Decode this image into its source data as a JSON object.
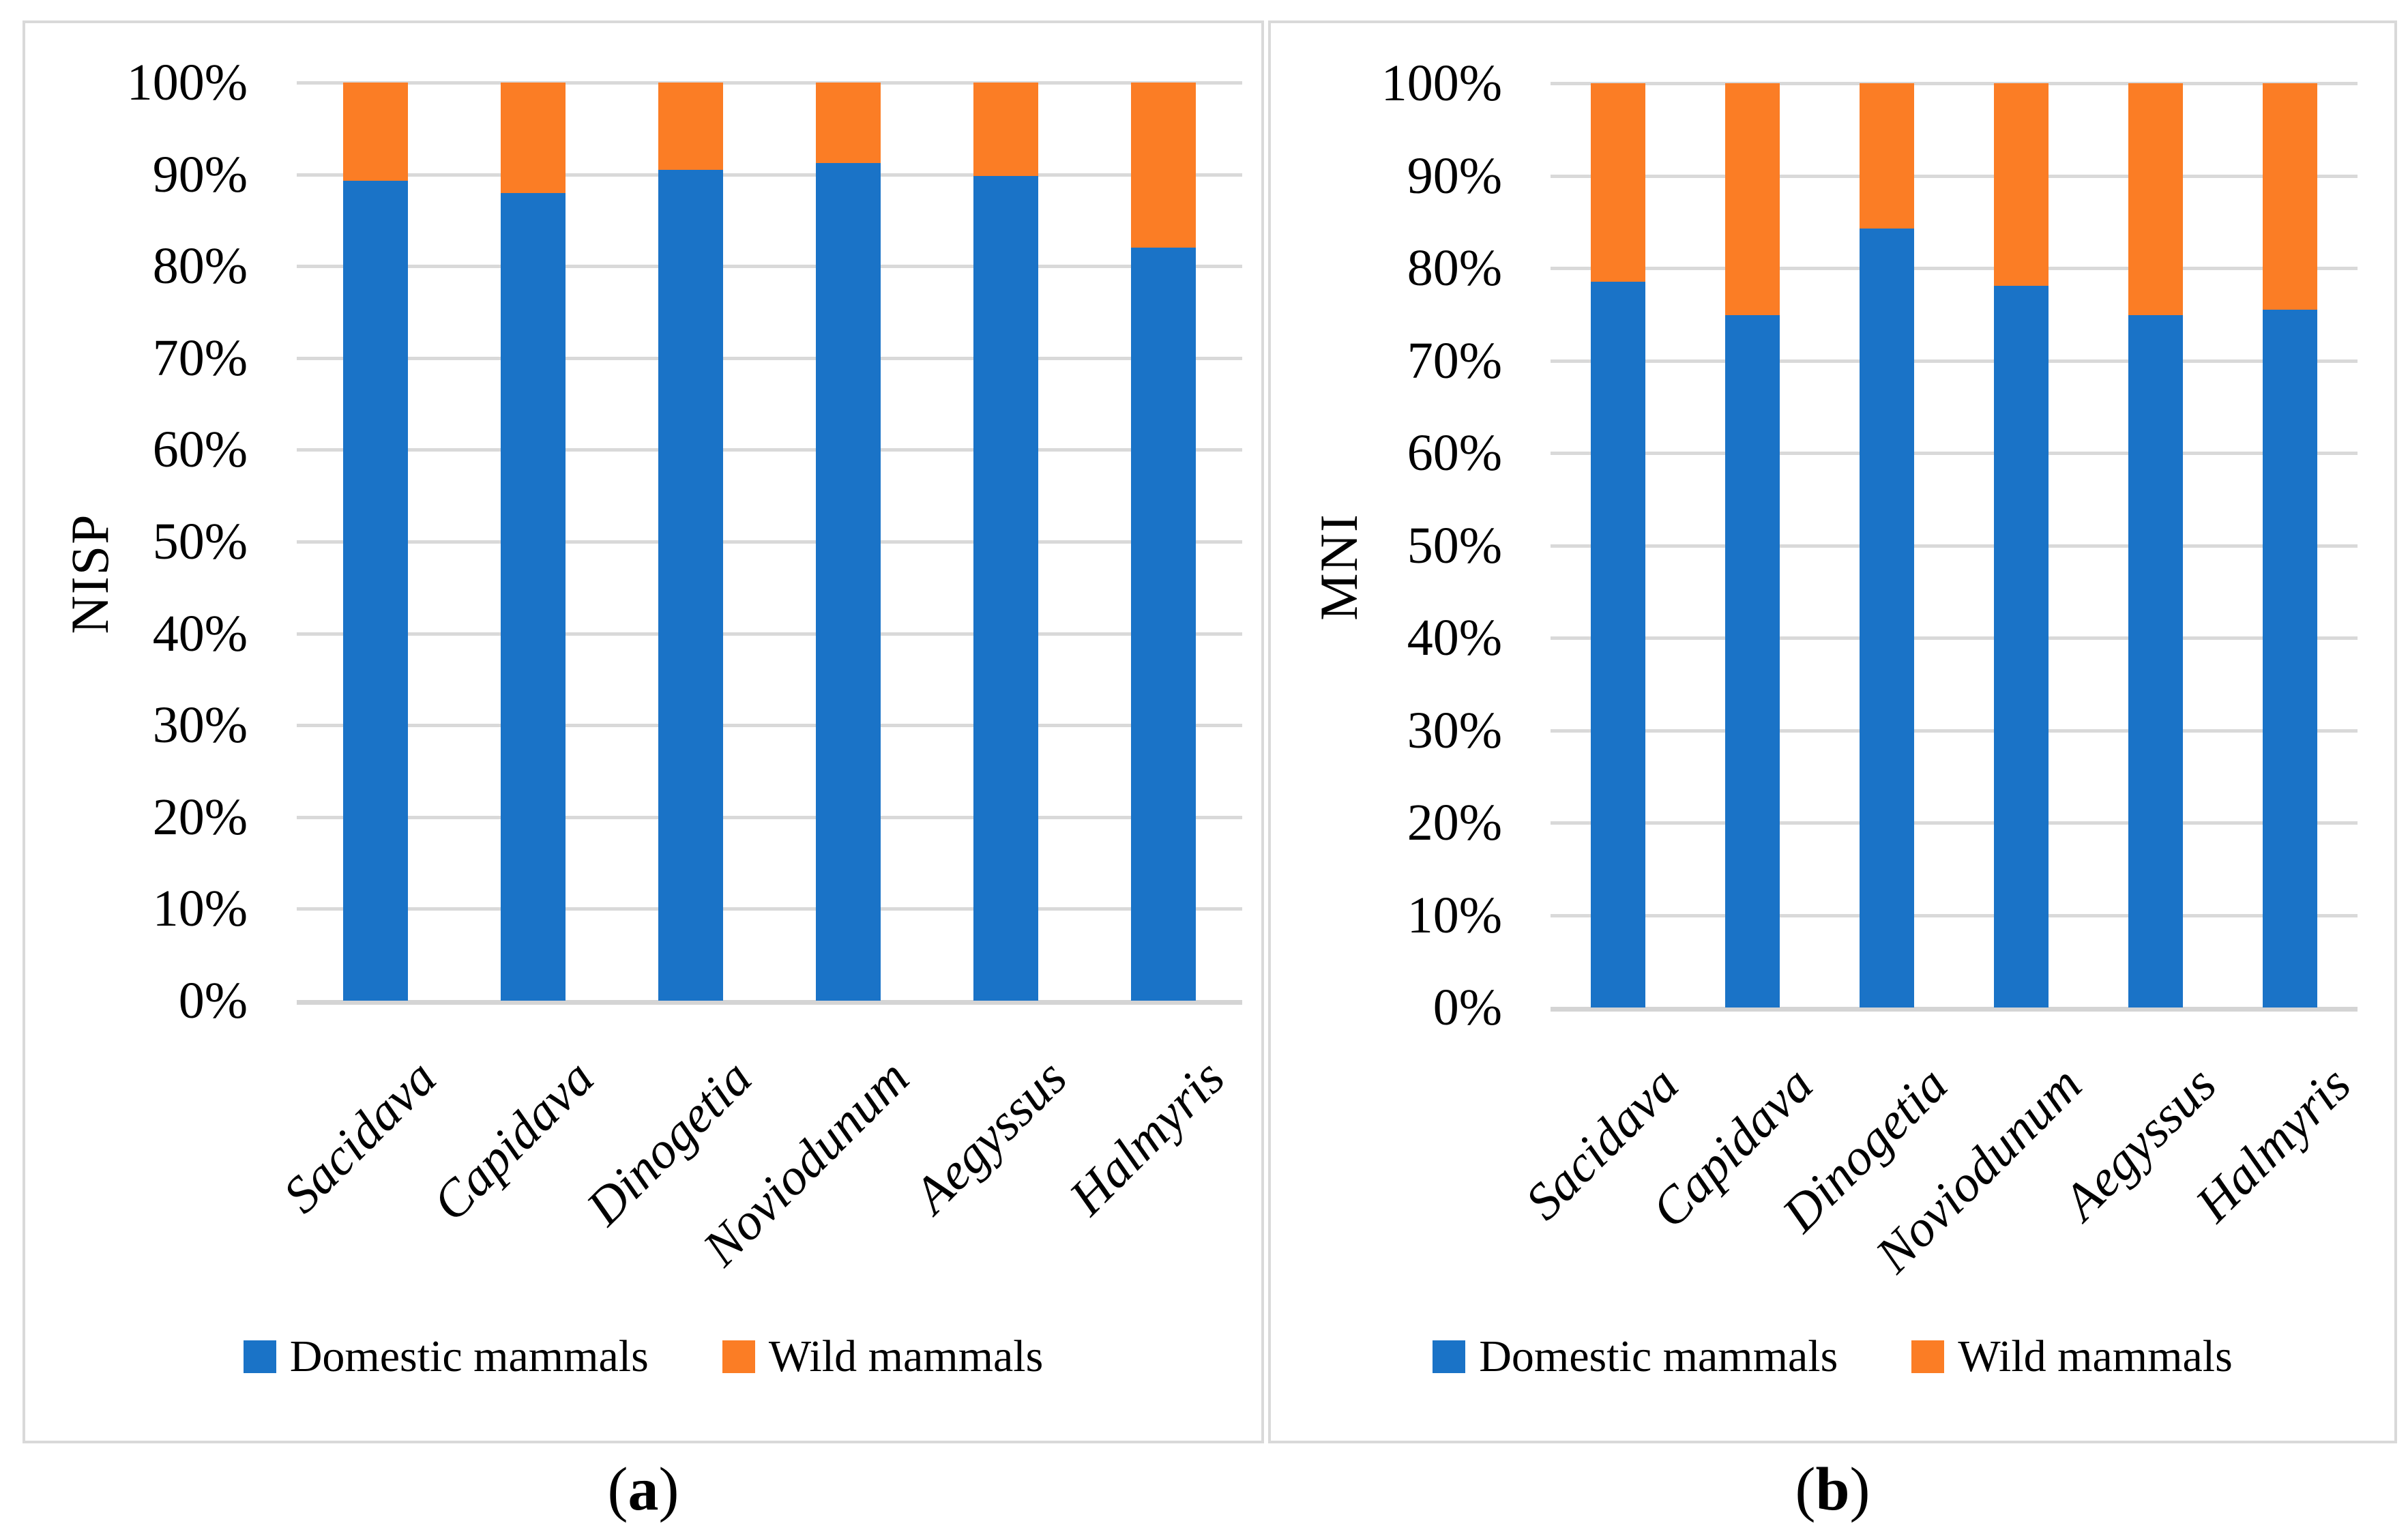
{
  "legend": {
    "domestic": "Domestic mammals",
    "wild": "Wild mammals"
  },
  "colors": {
    "domestic": "#1A73C7",
    "wild": "#FB7D25",
    "gridline": "#D9D9D9",
    "axis": "#D4D4D4",
    "panel_border": "#D9D9D9"
  },
  "chart_data": [
    {
      "id": "a",
      "type": "bar",
      "stacked": true,
      "title": "",
      "xlabel": "",
      "ylabel": "NISP",
      "categories": [
        "Sacidava",
        "Capidava",
        "Dinogetia",
        "Noviodunum",
        "Aegyssus",
        "Halmyris"
      ],
      "series": [
        {
          "name": "Domestic mammals",
          "color": "#1A73C7",
          "values": [
            89.3,
            88.0,
            90.5,
            91.2,
            89.8,
            82.0
          ]
        },
        {
          "name": "Wild mammals",
          "color": "#FB7D25",
          "values": [
            10.7,
            12.0,
            9.5,
            8.8,
            10.2,
            18.0
          ]
        }
      ],
      "y_ticks": [
        "0%",
        "10%",
        "20%",
        "30%",
        "40%",
        "50%",
        "60%",
        "70%",
        "80%",
        "90%",
        "100%"
      ],
      "ylim": [
        0,
        100
      ],
      "grid": true,
      "legend_position": "bottom",
      "caption": "(a)",
      "caption_letter": "a",
      "caption_prefix": "(",
      "caption_suffix": ")"
    },
    {
      "id": "b",
      "type": "bar",
      "stacked": true,
      "title": "",
      "xlabel": "",
      "ylabel": "MNI",
      "categories": [
        "Sacidava",
        "Capidava",
        "Dinogetia",
        "Noviodunum",
        "Aegyssus",
        "Halmyris"
      ],
      "series": [
        {
          "name": "Domestic mammals",
          "color": "#1A73C7",
          "values": [
            78.5,
            74.9,
            84.3,
            78.1,
            74.9,
            75.5
          ]
        },
        {
          "name": "Wild mammals",
          "color": "#FB7D25",
          "values": [
            21.5,
            25.1,
            15.7,
            21.9,
            25.1,
            24.5
          ]
        }
      ],
      "y_ticks": [
        "0%",
        "10%",
        "20%",
        "30%",
        "40%",
        "50%",
        "60%",
        "70%",
        "80%",
        "90%",
        "100%"
      ],
      "ylim": [
        0,
        100
      ],
      "grid": true,
      "legend_position": "bottom",
      "caption": "(b)",
      "caption_letter": "b",
      "caption_prefix": "(",
      "caption_suffix": ")"
    }
  ]
}
